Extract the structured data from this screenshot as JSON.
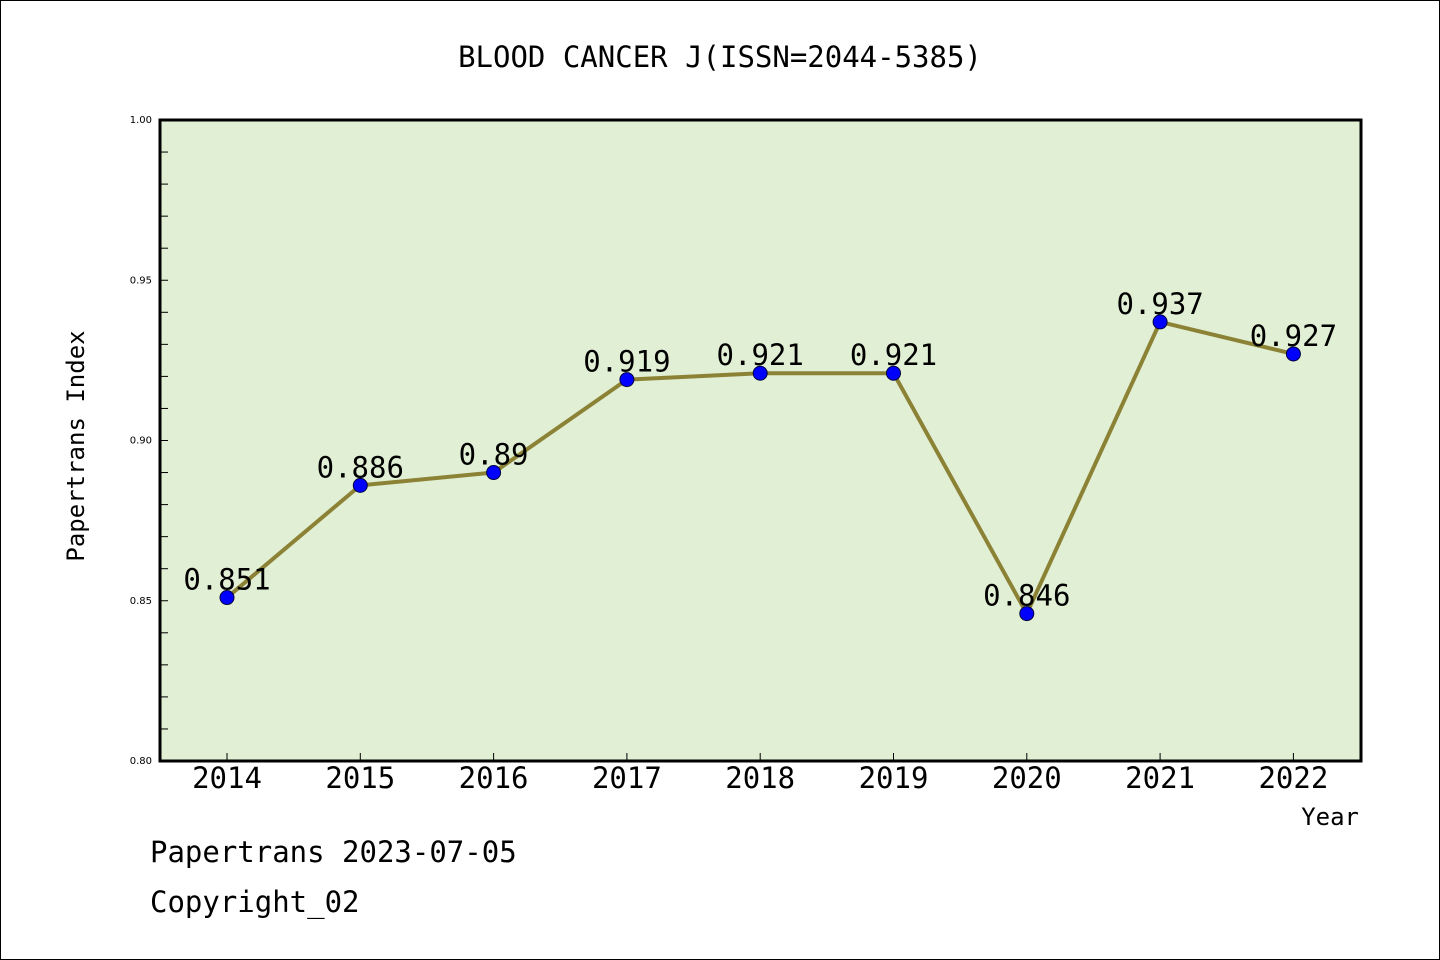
{
  "chart_data": {
    "type": "line",
    "title": "BLOOD CANCER J(ISSN=2044-5385)",
    "xlabel": "Year",
    "ylabel": "Papertrans Index",
    "categories": [
      "2014",
      "2015",
      "2016",
      "2017",
      "2018",
      "2019",
      "2020",
      "2021",
      "2022"
    ],
    "values": [
      0.851,
      0.886,
      0.89,
      0.919,
      0.921,
      0.921,
      0.846,
      0.937,
      0.927
    ],
    "data_labels": [
      "0.851",
      "0.886",
      "0.89",
      "0.919",
      "0.921",
      "0.921",
      "0.846",
      "0.937",
      "0.927"
    ],
    "ylim": [
      0.8,
      1.0
    ],
    "yticks": [
      "0.80",
      "0.85",
      "0.90",
      "0.95",
      "1.00"
    ],
    "grid": false,
    "colors": {
      "plot_background": "#e1efd4",
      "line": "#8b8236",
      "marker": "#0000ff"
    }
  },
  "footer": {
    "line1": "Papertrans 2023-07-05",
    "line2": "Copyright_02"
  }
}
